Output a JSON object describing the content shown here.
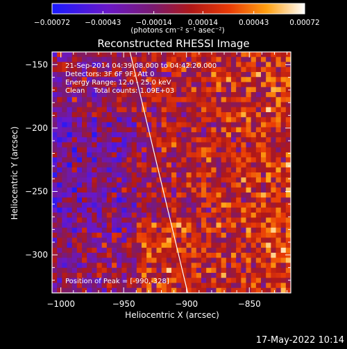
{
  "chart_data": {
    "type": "heatmap",
    "title": "Reconstructed RHESSI Image",
    "xlabel": "Heliocentric X (arcsec)",
    "ylabel": "Heliocentric Y (arcsec)",
    "xlim": [
      -1007,
      -817
    ],
    "ylim": [
      -330,
      -140
    ],
    "x_ticks": [
      -1000,
      -950,
      -900,
      -850
    ],
    "y_ticks": [
      -150,
      -200,
      -250,
      -300
    ],
    "x_tick_labels": [
      "−1000",
      "−950",
      "−900",
      "−850"
    ],
    "y_tick_labels": [
      "−150",
      "−200",
      "−250",
      "−300"
    ],
    "colorbar": {
      "vmin": -0.00072,
      "vmax": 0.00072,
      "ticks": [
        -0.00072,
        -0.00043,
        -0.00014,
        0.00014,
        0.00043,
        0.00072
      ],
      "tick_labels": [
        "−0.00072",
        "−0.00043",
        "−0.00014",
        "0.00014",
        "0.00043",
        "0.00072"
      ],
      "units": "(photons cm⁻² s⁻¹ asec⁻²)",
      "colormap": "blue-purple-red-orange-yellow-white"
    },
    "annotations": [
      "21-Sep-2014 04:39:08.000 to 04:42:20.000",
      "Detectors: 3F 6F 9F, Att 0",
      "Energy Range: 12.0 - 25.0 keV",
      "Clean    Total counts: 1.09E+03"
    ],
    "peak_label": "Position of Peak = [-990,-328]",
    "peak": [
      -990,
      -328
    ],
    "limb_line": [
      [
        -945,
        -140
      ],
      [
        -899,
        -330
      ]
    ],
    "grid": false
  },
  "footer": {
    "timestamp": "17-May-2022 10:14"
  }
}
